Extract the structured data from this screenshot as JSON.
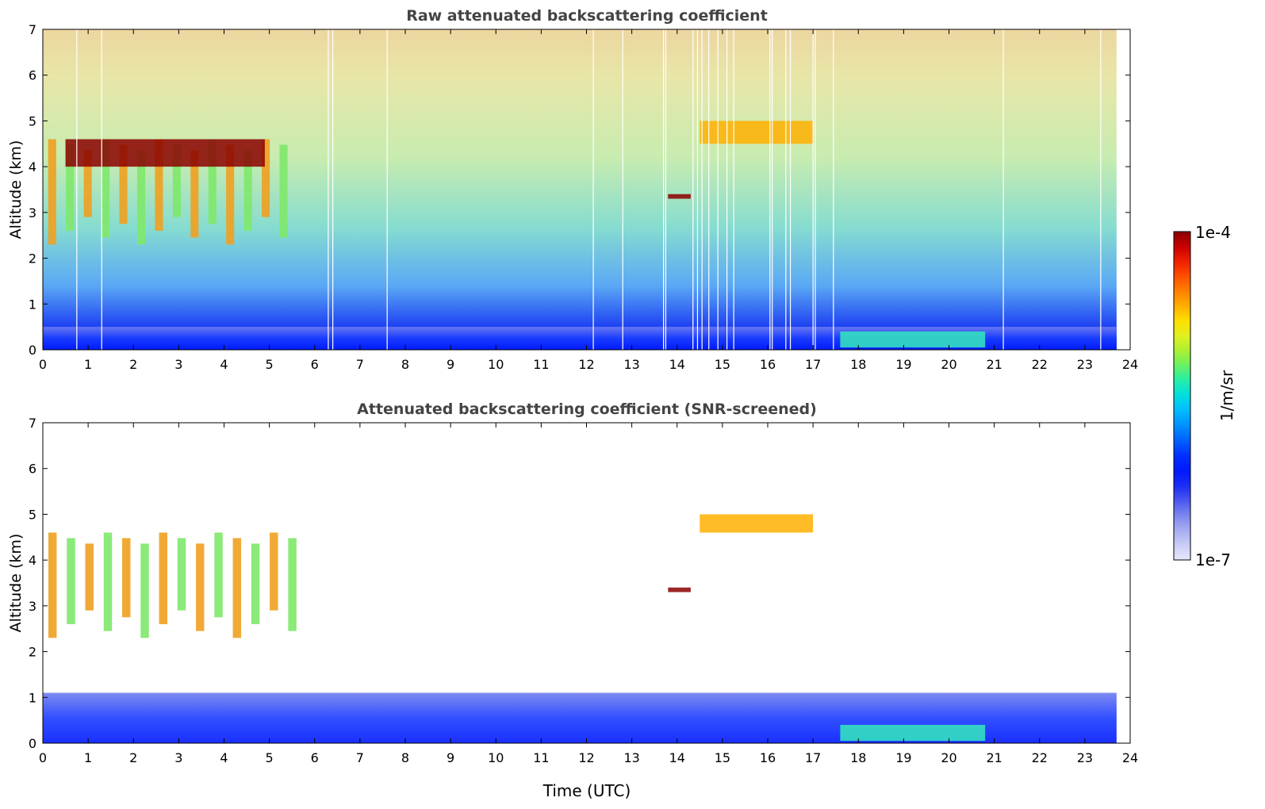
{
  "figure": {
    "xlabel": "Time (UTC)",
    "colorbar": {
      "label": "1/m/sr",
      "max_label": "1e-4",
      "min_label": "1e-7",
      "colors": [
        "#e6e8fb",
        "#c9cdf6",
        "#a6acf1",
        "#7d86ee",
        "#4a56ef",
        "#1a2cf5",
        "#0019ff",
        "#0030ff",
        "#0060ff",
        "#0090ff",
        "#00bbff",
        "#00dde0",
        "#22eeaa",
        "#66f066",
        "#aaf033",
        "#e0f020",
        "#ffe000",
        "#ffb000",
        "#ff8000",
        "#ff5000",
        "#f02000",
        "#c80000",
        "#8b0000"
      ]
    }
  },
  "chart_data": [
    {
      "type": "heatmap",
      "title": "Raw attenuated backscattering coefficient",
      "xlabel": "",
      "ylabel": "Altitude (km)",
      "xlim": [
        0,
        24
      ],
      "ylim": [
        0,
        7
      ],
      "xticks": [
        "0",
        "1",
        "2",
        "3",
        "4",
        "5",
        "6",
        "7",
        "8",
        "9",
        "10",
        "11",
        "12",
        "13",
        "14",
        "15",
        "16",
        "17",
        "18",
        "19",
        "20",
        "21",
        "22",
        "23",
        "24"
      ],
      "yticks": [
        "0",
        "1",
        "2",
        "3",
        "4",
        "5",
        "6",
        "7"
      ],
      "data_end_hour": 23.7,
      "missing_profiles_hours": [
        0.75,
        1.3,
        6.3,
        6.4,
        7.6,
        12.15,
        12.8,
        13.7,
        13.75,
        14.35,
        14.45,
        14.55,
        14.7,
        14.9,
        15.1,
        15.25,
        16.05,
        16.1,
        16.4,
        16.5,
        17.0,
        17.05,
        17.45,
        21.2,
        23.35
      ],
      "features": [
        {
          "name": "boundary-layer aerosol",
          "time": [
            0,
            23.7
          ],
          "altitude_km": [
            0,
            0.5
          ],
          "level": "low"
        },
        {
          "name": "mid-level clouds",
          "time": [
            0,
            5.5
          ],
          "altitude_km": [
            2.3,
            4.6
          ],
          "level": "high"
        },
        {
          "name": "cloud top layer",
          "time": [
            0.5,
            4.9
          ],
          "altitude_km": [
            4.0,
            4.6
          ],
          "level": "very high"
        },
        {
          "name": "small cloud",
          "time": [
            13.8,
            14.3
          ],
          "altitude_km": [
            3.3,
            3.4
          ],
          "level": "very high"
        },
        {
          "name": "elevated aerosol layer",
          "time": [
            14.5,
            17.0
          ],
          "altitude_km": [
            4.5,
            5.0
          ],
          "level": "high"
        },
        {
          "name": "low-level aerosol",
          "time": [
            17.6,
            20.8
          ],
          "altitude_km": [
            0.05,
            0.4
          ],
          "level": "medium"
        }
      ]
    },
    {
      "type": "heatmap",
      "title": "Attenuated backscattering coefficient (SNR-screened)",
      "xlabel": "Time (UTC)",
      "ylabel": "Altitude (km)",
      "xlim": [
        0,
        24
      ],
      "ylim": [
        0,
        7
      ],
      "xticks": [
        "0",
        "1",
        "2",
        "3",
        "4",
        "5",
        "6",
        "7",
        "8",
        "9",
        "10",
        "11",
        "12",
        "13",
        "14",
        "15",
        "16",
        "17",
        "18",
        "19",
        "20",
        "21",
        "22",
        "23",
        "24"
      ],
      "yticks": [
        "0",
        "1",
        "2",
        "3",
        "4",
        "5",
        "6",
        "7"
      ],
      "data_end_hour": 23.7,
      "features": [
        {
          "name": "boundary layer",
          "time": [
            0,
            23.7
          ],
          "altitude_km": [
            0,
            1.1
          ],
          "level": "low"
        },
        {
          "name": "mid-level clouds",
          "time": [
            0,
            5.7
          ],
          "altitude_km": [
            2.3,
            4.6
          ],
          "level": "high"
        },
        {
          "name": "small cloud",
          "time": [
            13.8,
            14.3
          ],
          "altitude_km": [
            3.3,
            3.4
          ],
          "level": "very high"
        },
        {
          "name": "elevated aerosol layer",
          "time": [
            14.5,
            17.0
          ],
          "altitude_km": [
            4.6,
            5.0
          ],
          "level": "high"
        },
        {
          "name": "low-level aerosol",
          "time": [
            17.6,
            20.8
          ],
          "altitude_km": [
            0.05,
            0.4
          ],
          "level": "medium"
        }
      ]
    }
  ]
}
